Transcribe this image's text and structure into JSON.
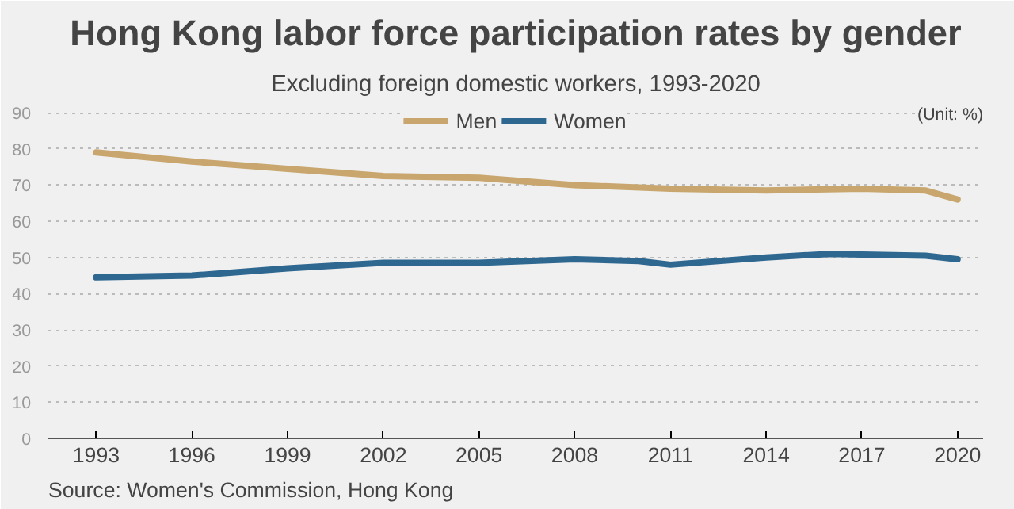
{
  "chart_data": {
    "type": "line",
    "title": "Hong Kong labor force participation rates by gender",
    "subtitle": "Excluding foreign domestic workers, 1993-2020",
    "annotations": [
      "(Unit: %)",
      "Source: Women's Commission, Hong Kong"
    ],
    "series": [
      {
        "name": "Men",
        "color": "#c8a66e",
        "x": [
          1993,
          1996,
          1999,
          2002,
          2005,
          2008,
          2011,
          2014,
          2017,
          2019,
          2020
        ],
        "values": [
          79,
          76.5,
          74.5,
          72.5,
          72,
          70,
          69,
          68.5,
          69,
          68.5,
          66
        ]
      },
      {
        "name": "Women",
        "color": "#2e6790",
        "x": [
          1993,
          1996,
          1999,
          2002,
          2005,
          2008,
          2010,
          2011,
          2014,
          2016,
          2017,
          2019,
          2020
        ],
        "values": [
          44.5,
          45,
          47,
          48.5,
          48.5,
          49.5,
          49,
          48,
          50,
          51,
          50.8,
          50.5,
          49.5
        ]
      }
    ],
    "xlim": [
      1991.5,
      2020.8
    ],
    "xticks": [
      1993,
      1996,
      1999,
      2002,
      2005,
      2008,
      2011,
      2014,
      2017,
      2020
    ],
    "ylim": [
      0,
      92
    ],
    "yticks": [
      0,
      10,
      20,
      30,
      40,
      50,
      60,
      70,
      80,
      90
    ],
    "grid": "y",
    "legend": "top",
    "line_style": "solid",
    "marker": "none"
  }
}
